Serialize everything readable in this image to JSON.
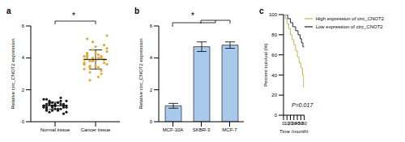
{
  "chart_data": [
    {
      "type": "scatter",
      "panel": "a",
      "y_label": "Relative circ_CNOT2 expression",
      "categories": [
        "Normal tissue",
        "Cancer tissue"
      ],
      "values": [
        [
          1.0,
          0.8,
          1.2,
          0.9,
          1.1,
          0.7,
          1.3,
          1.0,
          0.6,
          1.4,
          0.9,
          1.1,
          1.0,
          0.8,
          1.2,
          1.5,
          0.5,
          1.0,
          0.9,
          1.1,
          1.3,
          0.7,
          1.0,
          1.2,
          0.8,
          1.1,
          0.9,
          1.0,
          1.4,
          0.6,
          1.2,
          1.0,
          0.8,
          1.1,
          0.9,
          1.3,
          1.0,
          0.7,
          1.2,
          1.0
        ],
        [
          3.9,
          4.2,
          3.5,
          4.5,
          3.8,
          4.0,
          3.2,
          4.8,
          3.6,
          4.1,
          5.2,
          3.4,
          3.9,
          4.3,
          2.8,
          4.0,
          3.7,
          4.6,
          3.3,
          4.1,
          3.8,
          5.0,
          3.5,
          4.2,
          3.0,
          3.9,
          4.4,
          3.6,
          4.0,
          2.6,
          3.8,
          4.7,
          3.4,
          4.1,
          3.9,
          5.4,
          3.7,
          4.3,
          3.1,
          4.0
        ]
      ],
      "mean": [
        1.0,
        3.9
      ],
      "sd": [
        0.22,
        0.6
      ],
      "colors": [
        "#1a1a1a",
        "#e0a93b"
      ],
      "ylim": [
        0,
        6
      ],
      "yticks": [
        0,
        2,
        4,
        6
      ],
      "grid": false,
      "annotations": [
        "*"
      ]
    },
    {
      "type": "bar",
      "panel": "b",
      "y_label": "Relative circ_CNOT2 expression",
      "categories": [
        "MCF-10A",
        "SKBR-3",
        "MCF-7"
      ],
      "values": [
        1.0,
        4.7,
        4.8
      ],
      "error": [
        0.15,
        0.3,
        0.2
      ],
      "color": "#a8c8ec",
      "ylim": [
        0,
        6
      ],
      "yticks": [
        0,
        2,
        4,
        6
      ],
      "grid": false,
      "annotations": [
        "*"
      ]
    },
    {
      "type": "line",
      "panel": "c",
      "y_label": "Percent survival (%)",
      "x_label": "Time (month)",
      "series": [
        {
          "name": "Low expression of circ_CNOT2",
          "color": "#1f2a44",
          "line_style": "step",
          "x": [
            0,
            12,
            20,
            27,
            35,
            42,
            48,
            52,
            56,
            60
          ],
          "values": [
            100,
            96,
            92,
            88,
            84,
            80,
            76,
            72,
            68,
            68
          ]
        },
        {
          "name": "High expression of circ_CNOT2",
          "color": "#c9b458",
          "line_style": "step",
          "x": [
            0,
            5,
            10,
            15,
            20,
            25,
            30,
            35,
            40,
            45,
            50,
            55,
            58,
            60
          ],
          "values": [
            100,
            96,
            91,
            86,
            80,
            75,
            70,
            64,
            58,
            52,
            47,
            40,
            28,
            28
          ]
        }
      ],
      "xlim": [
        0,
        60
      ],
      "xticks": [
        0,
        10,
        20,
        30,
        40,
        50,
        60
      ],
      "ylim": [
        0,
        100
      ],
      "yticks": [
        0,
        20,
        40,
        60,
        80,
        100
      ],
      "grid": false,
      "legend": "upper right",
      "annotations": [
        "P=0.017"
      ]
    }
  ]
}
